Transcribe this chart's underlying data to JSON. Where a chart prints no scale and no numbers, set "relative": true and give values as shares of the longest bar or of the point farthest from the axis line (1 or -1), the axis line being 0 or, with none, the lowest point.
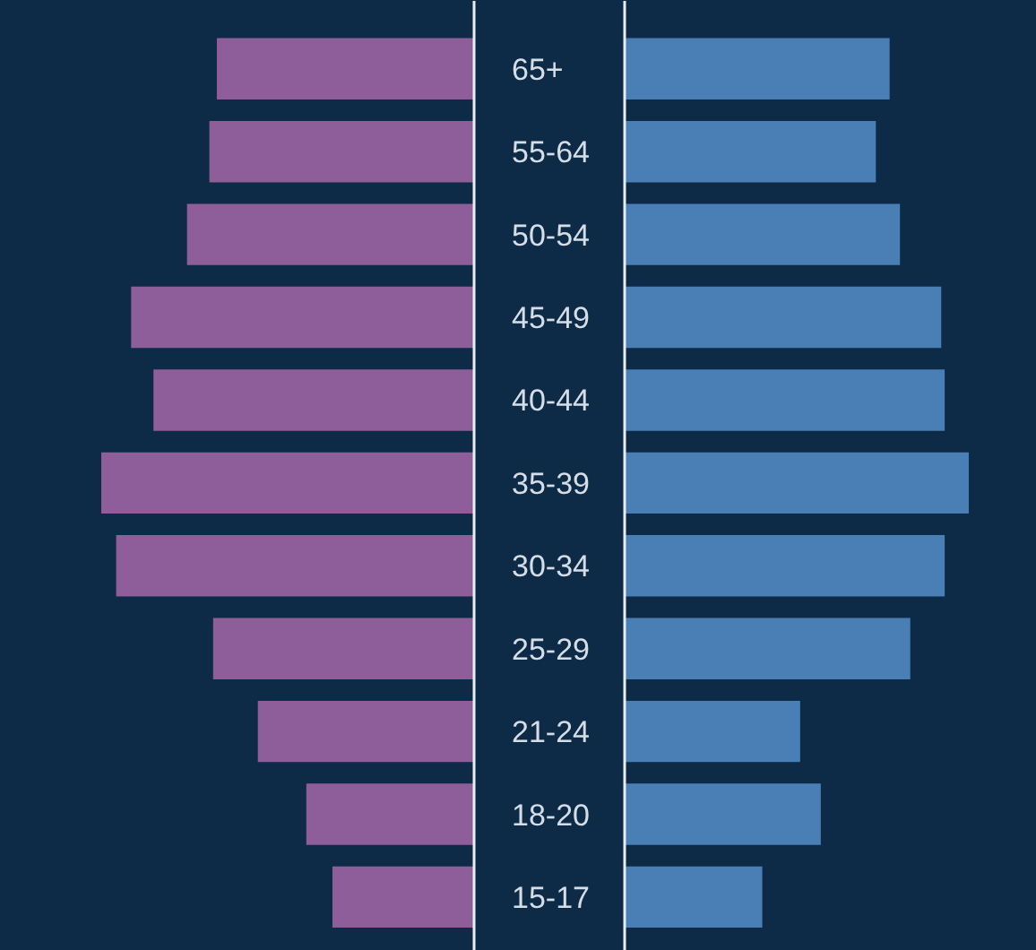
{
  "chart_data": [
    {
      "type": "bar",
      "orientation": "horizontal",
      "relative": true,
      "tick_labels": "y",
      "categories": [
        "65+",
        "55-64",
        "50-54",
        "45-49",
        "40-44",
        "35-39",
        "30-34",
        "25-29",
        "21-24",
        "18-20",
        "15-17"
      ],
      "series": [
        {
          "color": "#8e5e9a",
          "values": [
            -0.69,
            -0.71,
            -0.77,
            -0.92,
            -0.86,
            -1.0,
            -0.96,
            -0.7,
            -0.58,
            -0.45,
            -0.38
          ]
        }
      ]
    },
    {
      "type": "bar",
      "orientation": "horizontal",
      "relative": true,
      "tick_labels": false,
      "categories": [
        null,
        null,
        null,
        null,
        null,
        null,
        null,
        null,
        null,
        null,
        null
      ],
      "series": [
        {
          "color": "#4a7fb5",
          "values": [
            0.77,
            0.73,
            0.8,
            0.92,
            0.93,
            1.0,
            0.93,
            0.83,
            0.51,
            0.57,
            0.4
          ]
        }
      ]
    }
  ]
}
